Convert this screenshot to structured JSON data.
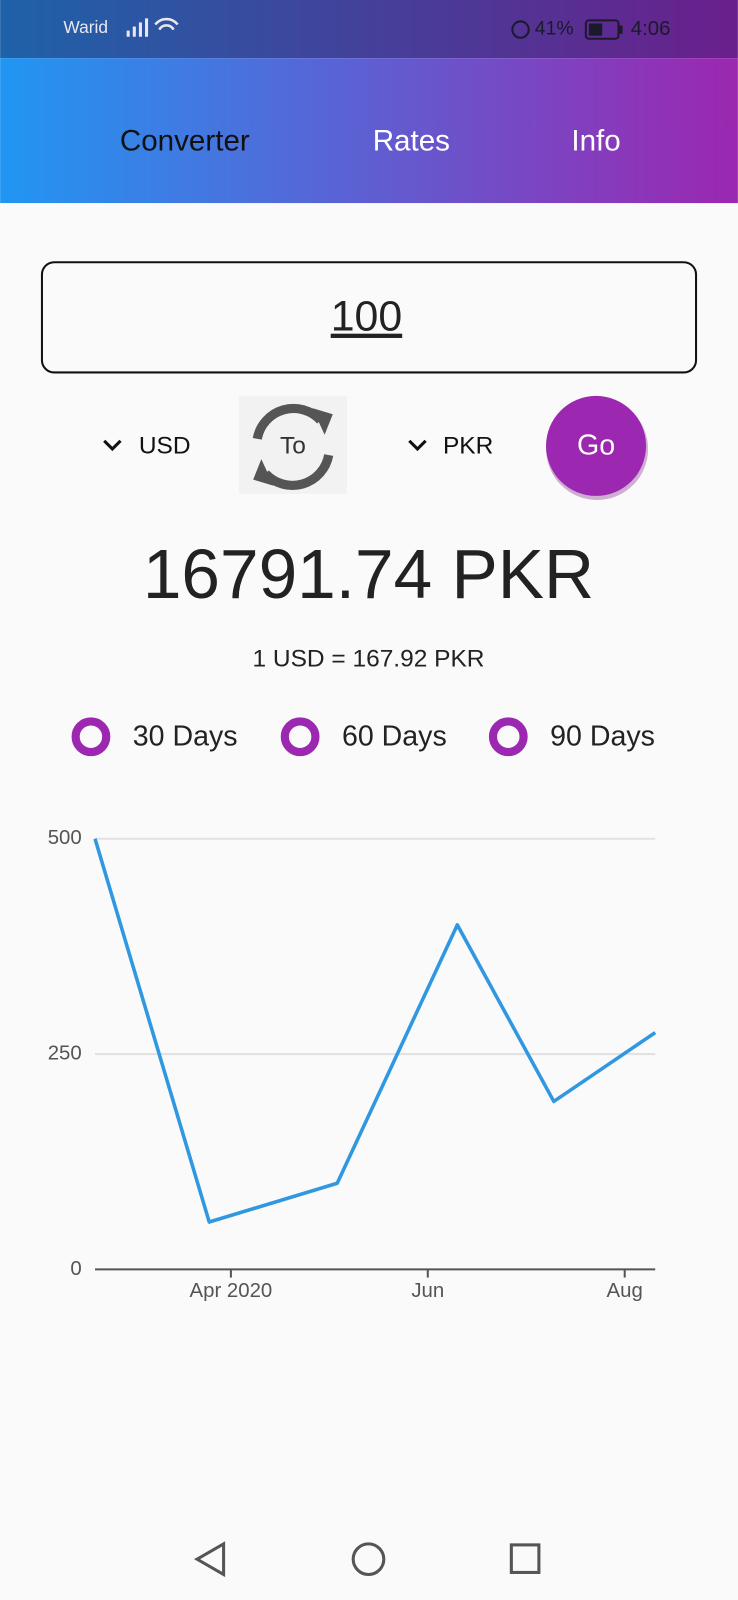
{
  "status_bar": {
    "carrier": "Warid",
    "battery": "41%",
    "time": "4:06"
  },
  "tabs": [
    "Converter",
    "Rates",
    "Info"
  ],
  "amount": "100",
  "from_currency": "USD",
  "swap_label": "To",
  "to_currency": "PKR",
  "go_button": "Go",
  "result": "16791.74 PKR",
  "rate": "1 USD = 167.92 PKR",
  "periods": [
    "30 Days",
    "60 Days",
    "90 Days"
  ],
  "chart_data": {
    "type": "line",
    "x": [
      2.62,
      3.78,
      5.08,
      6.3,
      7.28,
      8.31
    ],
    "values": [
      500,
      55,
      100,
      400,
      195,
      275
    ],
    "color": "#3098e0",
    "xlim": [
      2.62,
      8.31
    ],
    "xticks": [
      {
        "value": 4,
        "label": "Apr 2020"
      },
      {
        "value": 6,
        "label": "Jun"
      },
      {
        "value": 8,
        "label": "Aug"
      }
    ],
    "ylim": [
      0,
      500
    ],
    "yticks": [
      0,
      250,
      500
    ],
    "grid": true
  }
}
